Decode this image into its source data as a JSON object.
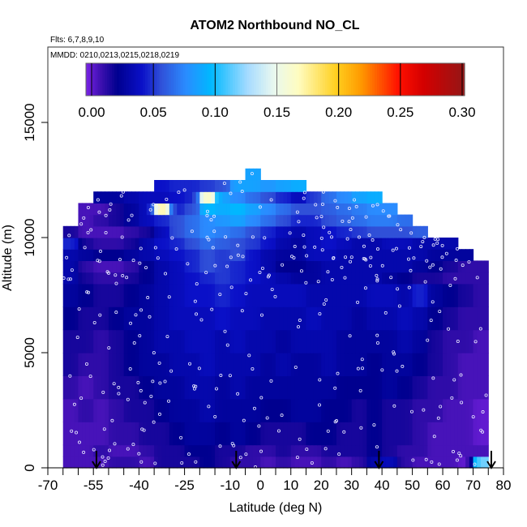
{
  "chart_data": {
    "type": "heatmap",
    "title": "ATOM2 Northbound NO_CL",
    "subtitle_flights": "Flts: 6,7,8,9,10",
    "annotation_dates": "MMDD: 0210,0213,0215,0218,0219",
    "xlabel": "Latitude (deg N)",
    "ylabel": "Altitude (m)",
    "xlim": [
      -70,
      80
    ],
    "ylim": [
      0,
      17500
    ],
    "x_ticks": [
      -70,
      -65,
      -60,
      -55,
      -50,
      -45,
      -40,
      -35,
      -30,
      -25,
      -20,
      -15,
      -10,
      -5,
      0,
      5,
      10,
      15,
      20,
      25,
      30,
      35,
      40,
      45,
      50,
      55,
      60,
      65,
      70,
      75,
      80
    ],
    "x_tick_labels": [
      "-70",
      "-55",
      "-40",
      "-25",
      "-10",
      "0",
      "10",
      "20",
      "30",
      "40",
      "50",
      "60",
      "70",
      "80"
    ],
    "x_tick_label_values": [
      -70,
      -55,
      -40,
      -25,
      -10,
      0,
      10,
      20,
      30,
      40,
      50,
      60,
      70,
      80
    ],
    "y_ticks": [
      0,
      5000,
      10000,
      15000
    ],
    "y_tick_labels": [
      "0",
      "5000",
      "10000",
      "15000"
    ],
    "colorbar": {
      "range": [
        0,
        0.3
      ],
      "tick_values": [
        0,
        0.05,
        0.1,
        0.15,
        0.2,
        0.25,
        0.3
      ],
      "tick_labels": [
        "0.00",
        "0.05",
        "0.10",
        "0.15",
        "0.20",
        "0.25",
        "0.30"
      ],
      "stops": [
        [
          0.0,
          "#7a22e6"
        ],
        [
          0.012,
          "#3d10b0"
        ],
        [
          0.025,
          "#00008f"
        ],
        [
          0.045,
          "#0a10c8"
        ],
        [
          0.06,
          "#3050d8"
        ],
        [
          0.08,
          "#2a8cff"
        ],
        [
          0.1,
          "#00b8ff"
        ],
        [
          0.13,
          "#a8dcff"
        ],
        [
          0.15,
          "#e8f8f0"
        ],
        [
          0.17,
          "#fffcc0"
        ],
        [
          0.2,
          "#ffd020"
        ],
        [
          0.22,
          "#ff9a00"
        ],
        [
          0.25,
          "#ff1000"
        ],
        [
          0.27,
          "#d40000"
        ],
        [
          0.3,
          "#9a1414"
        ]
      ]
    },
    "lat_bin_edges": [
      -65,
      -60,
      -55,
      -50,
      -45,
      -40,
      -35,
      -30,
      -25,
      -20,
      -15,
      -10,
      -5,
      0,
      5,
      10,
      15,
      20,
      25,
      30,
      35,
      40,
      45,
      50,
      55,
      60,
      65,
      70,
      75
    ],
    "alt_bin_edges": [
      0,
      500,
      1000,
      2000,
      3000,
      4000,
      5000,
      6000,
      7000,
      8000,
      8500,
      9000,
      9500,
      10000,
      10500,
      11000,
      11500,
      12000,
      12500,
      13000
    ],
    "values": [
      [
        0.01,
        0.01,
        0.01,
        0.015,
        0.015,
        0.01,
        0.02,
        0.02,
        0.02,
        0.025,
        0.02,
        0.015,
        0.015,
        0.01,
        0.015,
        0.01,
        0.01,
        0.015,
        0.01,
        0.015,
        0.035,
        0.04,
        0.015,
        0.01,
        0.01,
        0.01,
        0.005,
        0.12
      ],
      [
        0.01,
        0.01,
        0.015,
        0.01,
        0.01,
        0.015,
        0.02,
        0.02,
        0.025,
        0.025,
        0.02,
        0.02,
        0.015,
        0.015,
        0.02,
        0.015,
        0.015,
        0.02,
        0.02,
        0.02,
        0.025,
        0.02,
        0.015,
        0.015,
        0.01,
        0.01,
        0.01,
        0.01
      ],
      [
        0.01,
        0.01,
        0.01,
        0.015,
        0.015,
        0.02,
        0.02,
        0.025,
        0.03,
        0.03,
        0.025,
        0.03,
        0.025,
        0.02,
        0.02,
        0.02,
        0.025,
        0.025,
        0.02,
        0.02,
        0.025,
        0.02,
        0.02,
        0.015,
        0.01,
        0.01,
        0.01,
        0.005
      ],
      [
        0.01,
        0.015,
        0.01,
        0.015,
        0.02,
        0.02,
        0.025,
        0.03,
        0.03,
        0.035,
        0.03,
        0.03,
        0.03,
        0.025,
        0.025,
        0.03,
        0.03,
        0.025,
        0.025,
        0.02,
        0.025,
        0.02,
        0.02,
        0.015,
        0.015,
        0.01,
        0.01,
        0.005
      ],
      [
        0.015,
        0.01,
        0.015,
        0.02,
        0.02,
        0.025,
        0.03,
        0.03,
        0.035,
        0.035,
        0.03,
        0.035,
        0.03,
        0.03,
        0.03,
        0.03,
        0.03,
        0.03,
        0.025,
        0.025,
        0.025,
        0.03,
        0.025,
        0.02,
        0.015,
        0.015,
        0.01,
        0.01
      ],
      [
        0.02,
        0.015,
        0.015,
        0.02,
        0.025,
        0.03,
        0.03,
        0.035,
        0.035,
        0.04,
        0.035,
        0.035,
        0.035,
        0.03,
        0.035,
        0.03,
        0.03,
        0.035,
        0.03,
        0.03,
        0.025,
        0.03,
        0.03,
        0.025,
        0.02,
        0.015,
        0.01,
        0.01
      ],
      [
        0.02,
        0.02,
        0.015,
        0.02,
        0.025,
        0.03,
        0.035,
        0.035,
        0.04,
        0.04,
        0.035,
        0.04,
        0.035,
        0.035,
        0.03,
        0.035,
        0.035,
        0.035,
        0.03,
        0.03,
        0.03,
        0.03,
        0.035,
        0.03,
        0.02,
        0.015,
        0.015,
        0.01
      ],
      [
        0.025,
        0.02,
        0.02,
        0.025,
        0.03,
        0.03,
        0.035,
        0.04,
        0.04,
        0.04,
        0.045,
        0.04,
        0.04,
        0.035,
        0.035,
        0.035,
        0.04,
        0.035,
        0.035,
        0.03,
        0.035,
        0.035,
        0.04,
        0.035,
        0.025,
        0.02,
        0.015,
        0.015
      ],
      [
        0.03,
        0.025,
        0.02,
        0.02,
        0.025,
        0.03,
        0.035,
        0.04,
        0.045,
        0.045,
        0.05,
        0.045,
        0.04,
        0.04,
        0.04,
        0.04,
        0.035,
        0.035,
        0.035,
        0.035,
        0.04,
        0.04,
        0.035,
        0.05,
        0.03,
        0.025,
        0.02,
        0.015
      ],
      [
        0.035,
        0.02,
        0.015,
        0.015,
        0.02,
        0.025,
        0.035,
        0.04,
        0.045,
        0.05,
        0.055,
        0.05,
        0.045,
        0.04,
        0.035,
        0.03,
        0.03,
        0.035,
        0.035,
        0.035,
        0.035,
        0.03,
        0.025,
        0.02,
        0.02,
        0.015,
        0.015,
        0.015
      ],
      [
        0.035,
        0.015,
        0.01,
        0.01,
        0.015,
        0.025,
        0.035,
        0.04,
        0.05,
        0.06,
        0.055,
        0.05,
        0.045,
        0.035,
        0.025,
        0.025,
        0.03,
        0.035,
        0.035,
        0.035,
        0.035,
        0.035,
        0.035,
        0.03,
        0.025,
        0.02,
        0.015,
        0.015
      ],
      [
        0.035,
        0.03,
        0.025,
        0.025,
        0.03,
        0.035,
        0.04,
        0.045,
        0.05,
        0.06,
        0.055,
        0.06,
        0.045,
        0.035,
        0.03,
        0.03,
        0.04,
        0.04,
        0.035,
        0.035,
        0.035,
        0.035,
        0.035,
        0.035,
        0.03,
        0.03,
        0.03,
        null
      ],
      [
        0.05,
        0.02,
        0.015,
        0.015,
        0.02,
        0.035,
        0.045,
        0.05,
        0.06,
        0.07,
        0.065,
        0.06,
        0.055,
        0.045,
        0.035,
        0.03,
        0.04,
        0.045,
        0.04,
        0.035,
        0.035,
        0.04,
        0.04,
        0.035,
        0.035,
        0.035,
        null,
        null
      ],
      [
        0.02,
        0.01,
        0.01,
        0.01,
        0.015,
        0.02,
        0.04,
        0.06,
        0.07,
        0.08,
        0.075,
        0.07,
        0.06,
        0.05,
        0.04,
        0.035,
        0.04,
        0.045,
        0.05,
        0.055,
        0.06,
        0.06,
        0.06,
        0.065,
        null,
        null,
        null,
        null
      ],
      [
        null,
        0.01,
        0.015,
        0.02,
        0.03,
        0.04,
        0.05,
        0.06,
        0.07,
        0.08,
        0.085,
        0.09,
        0.08,
        0.07,
        0.06,
        0.05,
        0.05,
        0.06,
        0.065,
        0.07,
        0.075,
        0.075,
        0.07,
        null,
        null,
        null,
        null,
        null
      ],
      [
        null,
        0.01,
        0.01,
        0.02,
        0.03,
        0.04,
        0.18,
        0.05,
        0.06,
        0.1,
        0.095,
        0.1,
        0.09,
        0.08,
        0.07,
        0.06,
        0.06,
        0.065,
        0.07,
        0.075,
        0.08,
        0.08,
        null,
        null,
        null,
        null,
        null,
        null
      ],
      [
        null,
        null,
        0.03,
        0.03,
        0.035,
        0.04,
        0.04,
        0.045,
        0.05,
        0.17,
        0.09,
        0.08,
        0.07,
        0.06,
        0.05,
        0.04,
        0.055,
        0.07,
        0.08,
        0.09,
        0.095,
        null,
        null,
        null,
        null,
        null,
        null,
        null
      ],
      [
        null,
        null,
        null,
        null,
        null,
        null,
        0.045,
        0.05,
        0.05,
        0.055,
        0.06,
        0.09,
        0.09,
        0.085,
        0.09,
        0.095,
        null,
        null,
        null,
        null,
        null,
        null,
        null,
        null,
        null,
        null,
        null,
        null
      ],
      [
        null,
        null,
        null,
        null,
        null,
        null,
        null,
        null,
        null,
        null,
        null,
        null,
        0.09,
        null,
        null,
        null,
        null,
        null,
        null,
        null,
        null,
        null,
        null,
        null,
        null,
        null,
        null,
        null
      ]
    ],
    "profile_markers_lat": [
      -54,
      -8,
      39,
      76
    ],
    "marker_colors": {
      "points": "#e8e8ff",
      "arrows": "#000000"
    }
  }
}
